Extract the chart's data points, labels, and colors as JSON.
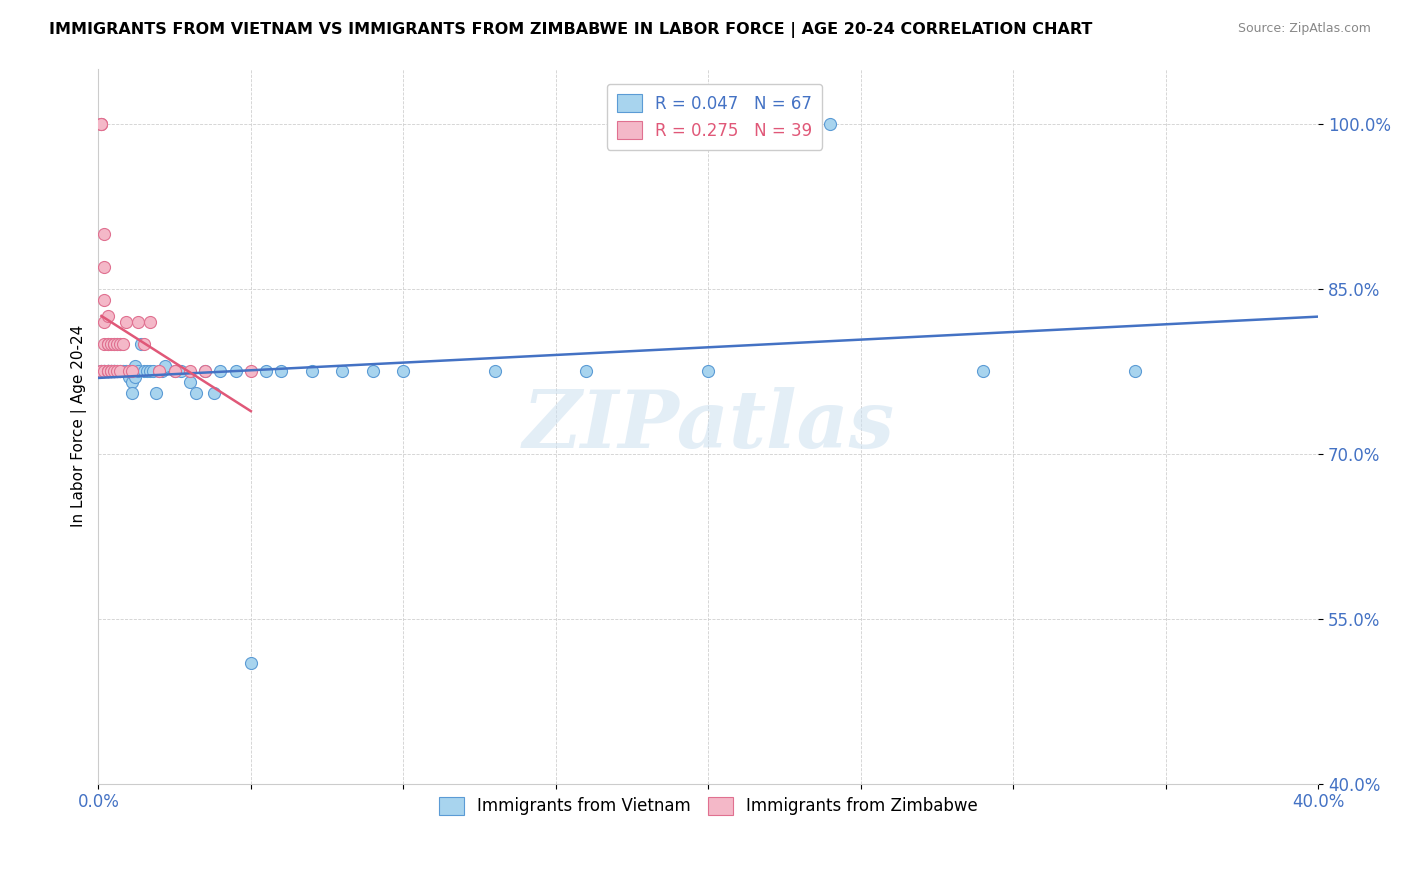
{
  "title": "IMMIGRANTS FROM VIETNAM VS IMMIGRANTS FROM ZIMBABWE IN LABOR FORCE | AGE 20-24 CORRELATION CHART",
  "source": "Source: ZipAtlas.com",
  "ylabel": "In Labor Force | Age 20-24",
  "xlim": [
    0.0,
    0.4
  ],
  "ylim": [
    0.4,
    1.05
  ],
  "yticks": [
    0.4,
    0.55,
    0.7,
    0.85,
    1.0
  ],
  "ytick_labels": [
    "40.0%",
    "55.0%",
    "70.0%",
    "85.0%",
    "100.0%"
  ],
  "xticks": [
    0.0,
    0.05,
    0.1,
    0.15,
    0.2,
    0.25,
    0.3,
    0.35,
    0.4
  ],
  "xtick_labels": [
    "0.0%",
    "",
    "",
    "",
    "",
    "",
    "",
    "",
    "40.0%"
  ],
  "vietnam_color": "#a8d4ee",
  "zimbabwe_color": "#f4b8c8",
  "vietnam_edge_color": "#5b9bd5",
  "zimbabwe_edge_color": "#e07090",
  "vietnam_line_color": "#4472c4",
  "zimbabwe_line_color": "#e05878",
  "legend_R_vietnam": "0.047",
  "legend_N_vietnam": "67",
  "legend_R_zimbabwe": "0.275",
  "legend_N_zimbabwe": "39",
  "watermark": "ZIPatlas",
  "vietnam_x": [
    0.001,
    0.001,
    0.002,
    0.002,
    0.002,
    0.002,
    0.003,
    0.003,
    0.003,
    0.003,
    0.003,
    0.004,
    0.004,
    0.004,
    0.004,
    0.005,
    0.005,
    0.005,
    0.005,
    0.005,
    0.006,
    0.006,
    0.006,
    0.007,
    0.007,
    0.007,
    0.008,
    0.008,
    0.009,
    0.009,
    0.01,
    0.01,
    0.011,
    0.011,
    0.012,
    0.012,
    0.013,
    0.014,
    0.015,
    0.016,
    0.017,
    0.018,
    0.019,
    0.02,
    0.021,
    0.022,
    0.025,
    0.027,
    0.03,
    0.032,
    0.035,
    0.038,
    0.04,
    0.045,
    0.05,
    0.055,
    0.06,
    0.07,
    0.08,
    0.09,
    0.1,
    0.13,
    0.16,
    0.2,
    0.24,
    0.29,
    0.34
  ],
  "vietnam_y": [
    0.775,
    0.775,
    0.775,
    0.775,
    0.775,
    0.775,
    0.775,
    0.775,
    0.775,
    0.775,
    0.775,
    0.775,
    0.775,
    0.775,
    0.775,
    0.775,
    0.775,
    0.775,
    0.775,
    0.775,
    0.8,
    0.775,
    0.775,
    0.775,
    0.8,
    0.775,
    0.775,
    0.775,
    0.775,
    0.775,
    0.775,
    0.77,
    0.765,
    0.755,
    0.78,
    0.77,
    0.775,
    0.8,
    0.775,
    0.775,
    0.775,
    0.775,
    0.755,
    0.775,
    0.775,
    0.78,
    0.775,
    0.775,
    0.765,
    0.755,
    0.775,
    0.755,
    0.775,
    0.775,
    0.51,
    0.775,
    0.775,
    0.775,
    0.775,
    0.775,
    0.775,
    0.775,
    0.775,
    0.775,
    1.0,
    0.775,
    0.775
  ],
  "zimbabwe_x": [
    0.001,
    0.001,
    0.001,
    0.001,
    0.001,
    0.002,
    0.002,
    0.002,
    0.002,
    0.002,
    0.002,
    0.003,
    0.003,
    0.003,
    0.003,
    0.003,
    0.003,
    0.004,
    0.004,
    0.004,
    0.005,
    0.005,
    0.005,
    0.006,
    0.006,
    0.007,
    0.007,
    0.008,
    0.009,
    0.01,
    0.011,
    0.013,
    0.015,
    0.017,
    0.02,
    0.025,
    0.03,
    0.035,
    0.05
  ],
  "zimbabwe_y": [
    1.0,
    1.0,
    1.0,
    0.775,
    0.775,
    0.9,
    0.87,
    0.84,
    0.82,
    0.8,
    0.775,
    0.825,
    0.8,
    0.8,
    0.775,
    0.775,
    0.775,
    0.8,
    0.775,
    0.775,
    0.8,
    0.8,
    0.775,
    0.8,
    0.775,
    0.8,
    0.775,
    0.8,
    0.82,
    0.775,
    0.775,
    0.82,
    0.8,
    0.82,
    0.775,
    0.775,
    0.775,
    0.775,
    0.775
  ]
}
